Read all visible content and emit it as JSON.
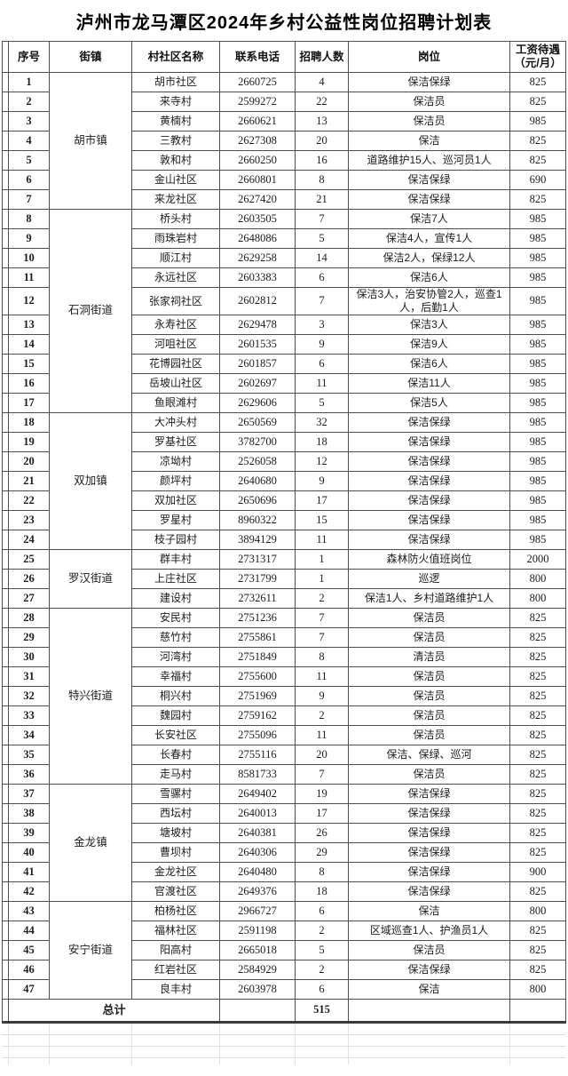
{
  "title": "泸州市龙马潭区2024年乡村公益性岗位招聘计划表",
  "colors": {
    "border": "#4d4d4d",
    "text": "#1a1a1a",
    "faint_grid": "#dcdcdc",
    "background": "#ffffff"
  },
  "table": {
    "headers": [
      "序号",
      "街镇",
      "村社区名称",
      "联系电话",
      "招聘人数",
      "岗位",
      "工资待遇（元/月）"
    ],
    "groups": [
      {
        "town": "胡市镇",
        "rows": [
          {
            "no": "1",
            "village": "胡市社区",
            "phone": "2660725",
            "count": "4",
            "post": "保洁保绿",
            "salary": "825"
          },
          {
            "no": "2",
            "village": "来寺村",
            "phone": "2599272",
            "count": "22",
            "post": "保洁员",
            "salary": "825"
          },
          {
            "no": "3",
            "village": "黄楠村",
            "phone": "2660621",
            "count": "13",
            "post": "保洁员",
            "salary": "985"
          },
          {
            "no": "4",
            "village": "三教村",
            "phone": "2627308",
            "count": "20",
            "post": "保洁",
            "salary": "825"
          },
          {
            "no": "5",
            "village": "敦和村",
            "phone": "2660250",
            "count": "16",
            "post": "道路维护15人、巡河员1人",
            "salary": "825"
          },
          {
            "no": "6",
            "village": "金山社区",
            "phone": "2660801",
            "count": "8",
            "post": "保洁保绿",
            "salary": "690"
          },
          {
            "no": "7",
            "village": "来龙社区",
            "phone": "2627420",
            "count": "21",
            "post": "保洁保绿",
            "salary": "825"
          }
        ]
      },
      {
        "town": "石洞街道",
        "rows": [
          {
            "no": "8",
            "village": "桥头村",
            "phone": "2603505",
            "count": "7",
            "post": "保洁7人",
            "salary": "985"
          },
          {
            "no": "9",
            "village": "雨珠岩村",
            "phone": "2648086",
            "count": "5",
            "post": "保洁4人，宣传1人",
            "salary": "985"
          },
          {
            "no": "10",
            "village": "顺江村",
            "phone": "2629258",
            "count": "14",
            "post": "保洁2人，保绿12人",
            "salary": "985"
          },
          {
            "no": "11",
            "village": "永远社区",
            "phone": "2603383",
            "count": "6",
            "post": "保洁6人",
            "salary": "985"
          },
          {
            "no": "12",
            "village": "张家祠社区",
            "phone": "2602812",
            "count": "7",
            "post": "保洁3人，治安协管2人，巡查1人，后勤1人",
            "salary": "985"
          },
          {
            "no": "13",
            "village": "永寿社区",
            "phone": "2629478",
            "count": "3",
            "post": "保洁3人",
            "salary": "985"
          },
          {
            "no": "14",
            "village": "河咀社区",
            "phone": "2601535",
            "count": "9",
            "post": "保洁9人",
            "salary": "985"
          },
          {
            "no": "15",
            "village": "花博园社区",
            "phone": "2601857",
            "count": "6",
            "post": "保洁6人",
            "salary": "985"
          },
          {
            "no": "16",
            "village": "岳坡山社区",
            "phone": "2602697",
            "count": "11",
            "post": "保洁11人",
            "salary": "985"
          },
          {
            "no": "17",
            "village": "鱼眼滩村",
            "phone": "2629606",
            "count": "5",
            "post": "保洁5人",
            "salary": "985"
          }
        ]
      },
      {
        "town": "双加镇",
        "rows": [
          {
            "no": "18",
            "village": "大冲头村",
            "phone": "2650569",
            "count": "32",
            "post": "保洁保绿",
            "salary": "985"
          },
          {
            "no": "19",
            "village": "罗基社区",
            "phone": "3782700",
            "count": "18",
            "post": "保洁保绿",
            "salary": "985"
          },
          {
            "no": "20",
            "village": "凉坳村",
            "phone": "2526058",
            "count": "12",
            "post": "保洁保绿",
            "salary": "985"
          },
          {
            "no": "21",
            "village": "颜坪村",
            "phone": "2640680",
            "count": "9",
            "post": "保洁保绿",
            "salary": "985"
          },
          {
            "no": "22",
            "village": "双加社区",
            "phone": "2650696",
            "count": "17",
            "post": "保洁保绿",
            "salary": "985"
          },
          {
            "no": "23",
            "village": "罗星村",
            "phone": "8960322",
            "count": "15",
            "post": "保洁保绿",
            "salary": "985"
          },
          {
            "no": "24",
            "village": "枝子园村",
            "phone": "3894129",
            "count": "11",
            "post": "保洁保绿",
            "salary": "985"
          }
        ]
      },
      {
        "town": "罗汉街道",
        "rows": [
          {
            "no": "25",
            "village": "群丰村",
            "phone": "2731317",
            "count": "1",
            "post": "森林防火值班岗位",
            "salary": "2000"
          },
          {
            "no": "26",
            "village": "上庄社区",
            "phone": "2731799",
            "count": "1",
            "post": "巡逻",
            "salary": "800"
          },
          {
            "no": "27",
            "village": "建设村",
            "phone": "2732611",
            "count": "2",
            "post": "保洁1人、乡村道路维护1人",
            "salary": "800"
          }
        ]
      },
      {
        "town": "特兴街道",
        "rows": [
          {
            "no": "28",
            "village": "安民村",
            "phone": "2751236",
            "count": "7",
            "post": "保洁员",
            "salary": "825"
          },
          {
            "no": "29",
            "village": "慈竹村",
            "phone": "2755861",
            "count": "7",
            "post": "保洁员",
            "salary": "825"
          },
          {
            "no": "30",
            "village": "河湾村",
            "phone": "2751849",
            "count": "8",
            "post": "清洁员",
            "salary": "825"
          },
          {
            "no": "31",
            "village": "幸福村",
            "phone": "2755600",
            "count": "11",
            "post": "保洁员",
            "salary": "825"
          },
          {
            "no": "32",
            "village": "桐兴村",
            "phone": "2751969",
            "count": "9",
            "post": "保洁员",
            "salary": "825"
          },
          {
            "no": "33",
            "village": "魏园村",
            "phone": "2759162",
            "count": "2",
            "post": "保洁员",
            "salary": "825"
          },
          {
            "no": "34",
            "village": "长安社区",
            "phone": "2755096",
            "count": "11",
            "post": "保洁员",
            "salary": "825"
          },
          {
            "no": "35",
            "village": "长春村",
            "phone": "2755116",
            "count": "20",
            "post": "保洁、保绿、巡河",
            "salary": "825"
          },
          {
            "no": "36",
            "village": "走马村",
            "phone": "8581733",
            "count": "7",
            "post": "保洁员",
            "salary": "825"
          }
        ]
      },
      {
        "town": "金龙镇",
        "rows": [
          {
            "no": "37",
            "village": "雪骡村",
            "phone": "2649402",
            "count": "19",
            "post": "保洁保绿",
            "salary": "825"
          },
          {
            "no": "38",
            "village": "西坛村",
            "phone": "2640013",
            "count": "17",
            "post": "保洁保绿",
            "salary": "825"
          },
          {
            "no": "39",
            "village": "塘坡村",
            "phone": "2640381",
            "count": "26",
            "post": "保洁保绿",
            "salary": "825"
          },
          {
            "no": "40",
            "village": "曹坝村",
            "phone": "2640306",
            "count": "29",
            "post": "保洁保绿",
            "salary": "825"
          },
          {
            "no": "41",
            "village": "金龙社区",
            "phone": "2640480",
            "count": "8",
            "post": "保洁保绿",
            "salary": "900"
          },
          {
            "no": "42",
            "village": "官渡社区",
            "phone": "2649376",
            "count": "18",
            "post": "保洁保绿",
            "salary": "825"
          }
        ]
      },
      {
        "town": "安宁街道",
        "rows": [
          {
            "no": "43",
            "village": "柏杨社区",
            "phone": "2966727",
            "count": "6",
            "post": "保洁",
            "salary": "800"
          },
          {
            "no": "44",
            "village": "福林社区",
            "phone": "2591198",
            "count": "2",
            "post": "区域巡查1人、护渔员1人",
            "salary": "825"
          },
          {
            "no": "45",
            "village": "阳高村",
            "phone": "2665018",
            "count": "5",
            "post": "保洁员",
            "salary": "825"
          },
          {
            "no": "46",
            "village": "红岩社区",
            "phone": "2584929",
            "count": "2",
            "post": "保洁保绿",
            "salary": "825"
          },
          {
            "no": "47",
            "village": "良丰村",
            "phone": "2603978",
            "count": "6",
            "post": "保洁",
            "salary": "800"
          }
        ]
      }
    ],
    "total": {
      "label": "总计",
      "count": "515"
    }
  }
}
